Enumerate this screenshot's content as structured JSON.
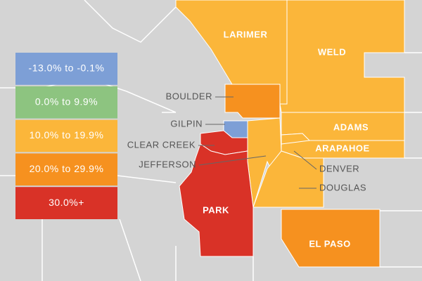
{
  "legend": [
    {
      "label": "-13.0% to -0.1%",
      "color": "#7d9fd6"
    },
    {
      "label": "0.0% to 9.9%",
      "color": "#8dc480"
    },
    {
      "label": "10.0% to 19.9%",
      "color": "#fbb63a"
    },
    {
      "label": "20.0% to 29.9%",
      "color": "#f6911f"
    },
    {
      "label": "30.0%+",
      "color": "#d93227"
    }
  ],
  "counties": [
    {
      "name": "LARIMER",
      "color": "#fbb63a"
    },
    {
      "name": "WELD",
      "color": "#fbb63a"
    },
    {
      "name": "BOULDER",
      "color": "#f6911f"
    },
    {
      "name": "GILPIN",
      "color": "#7d9fd6"
    },
    {
      "name": "CLEAR CREEK",
      "color": "#d93227"
    },
    {
      "name": "JEFFERSON",
      "color": "#fbb63a"
    },
    {
      "name": "ADAMS",
      "color": "#fbb63a"
    },
    {
      "name": "ARAPAHOE",
      "color": "#fbb63a"
    },
    {
      "name": "DENVER",
      "color": "#fbb63a"
    },
    {
      "name": "DOUGLAS",
      "color": "#fbb63a"
    },
    {
      "name": "PARK",
      "color": "#d93227"
    },
    {
      "name": "EL PASO",
      "color": "#f6911f"
    }
  ]
}
